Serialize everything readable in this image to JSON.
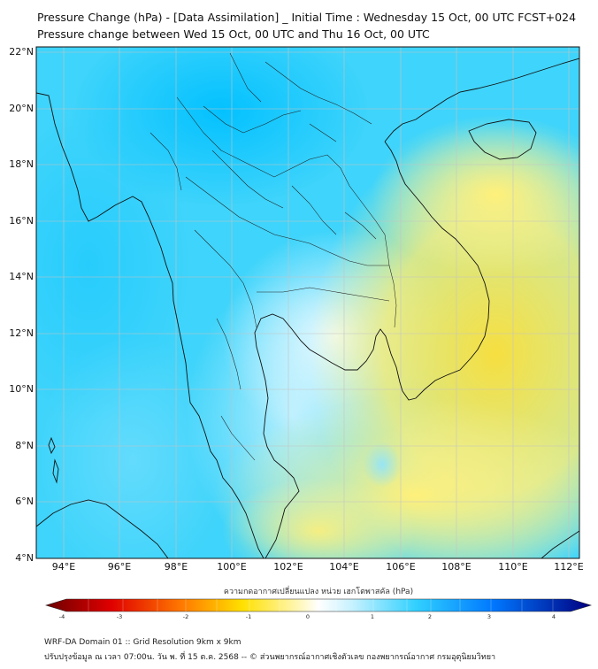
{
  "header": {
    "title_line1": "Pressure Change (hPa) - [Data Assimilation] _ Initial Time : Wednesday 15 Oct, 00 UTC FCST+024",
    "title_line2": "Pressure change between Wed 15 Oct, 00 UTC and Thu 16 Oct, 00 UTC"
  },
  "map": {
    "lat_labels": [
      "22°N",
      "20°N",
      "18°N",
      "16°N",
      "14°N",
      "12°N",
      "10°N",
      "8°N",
      "6°N",
      "4°N"
    ],
    "lon_labels": [
      "94°E",
      "96°E",
      "98°E",
      "100°E",
      "102°E",
      "104°E",
      "106°E",
      "108°E",
      "110°E",
      "112°E"
    ],
    "colors": {
      "strong_fall": "#00c8ff",
      "moderate_fall": "#3cd6ff",
      "weak_fall": "#bfeeff",
      "no_change": "#ffffff",
      "weak_rise": "#fff59a",
      "moderate_rise": "#f7e24a",
      "coastline": "#111111",
      "grid": "#bbbbbb"
    }
  },
  "colorbar": {
    "title": "ความกดอากาศเปลี่ยนแปลง หน่วย เฮกโตพาสคัล (hPa)",
    "tick_labels": [
      "-4",
      "-3",
      "-2",
      "-1",
      "0",
      "1",
      "2",
      "3",
      "4"
    ],
    "range": [
      -4,
      4
    ]
  },
  "footer": {
    "line1": "WRF-DA Domain 01 :: Grid Resolution 9km x 9km",
    "line2": "ปรับปรุงข้อมูล ณ เวลา 07:00น. วัน พ. ที่ 15 ต.ค. 2568 -- © ส่วนพยากรณ์อากาศเชิงตัวเลข กองพยากรณ์อากาศ กรมอุตุนิยมวิทยา"
  }
}
